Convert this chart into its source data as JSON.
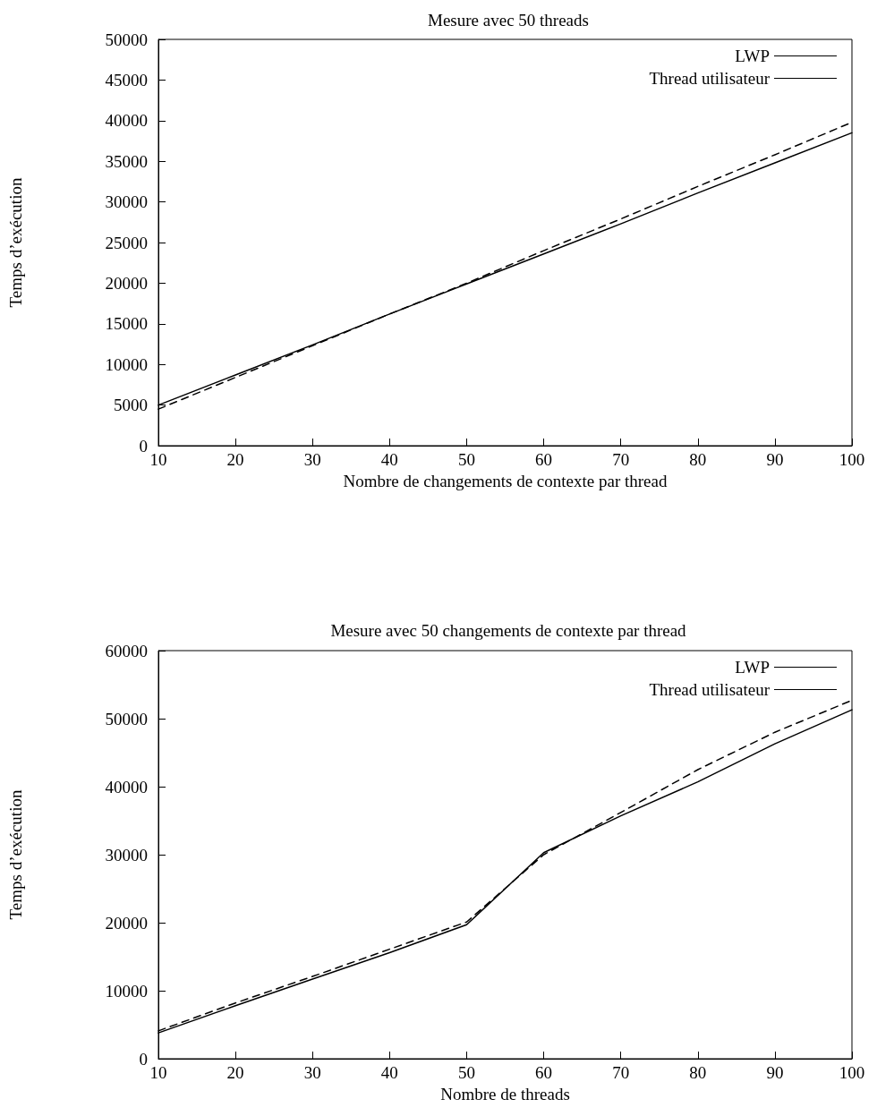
{
  "chart_data": [
    {
      "type": "line",
      "title": "Mesure avec 50 threads",
      "xlabel": "Nombre de changements de contexte par thread",
      "ylabel": "Temps d’exécution",
      "x": [
        10,
        20,
        30,
        40,
        50,
        60,
        70,
        80,
        90,
        100
      ],
      "series": [
        {
          "name": "LWP",
          "color": "#000000",
          "line_style": "solid",
          "values": [
            5000,
            8700,
            12400,
            16200,
            19900,
            23600,
            27300,
            31100,
            34800,
            38500
          ]
        },
        {
          "name": "Thread utilisateur",
          "color": "#000000",
          "line_style": "dashed",
          "values": [
            4500,
            8400,
            12300,
            16200,
            20000,
            24000,
            27900,
            31900,
            35800,
            39800
          ]
        }
      ],
      "xlim": [
        10,
        100
      ],
      "xticks": [
        10,
        20,
        30,
        40,
        50,
        60,
        70,
        80,
        90,
        100
      ],
      "ylim": [
        0,
        50000
      ],
      "yticks": [
        0,
        5000,
        10000,
        15000,
        20000,
        25000,
        30000,
        35000,
        40000,
        45000,
        50000
      ],
      "legend": "top right",
      "marker": "none",
      "grid": false
    },
    {
      "type": "line",
      "title": "Mesure avec 50 changements de contexte par thread",
      "xlabel": "Nombre de threads",
      "ylabel": "Temps d’exécution",
      "x": [
        10,
        20,
        30,
        40,
        50,
        60,
        70,
        80,
        90,
        100
      ],
      "series": [
        {
          "name": "LWP",
          "color": "#000000",
          "line_style": "solid",
          "values": [
            3800,
            7800,
            11700,
            15600,
            19700,
            30300,
            35700,
            40700,
            46300,
            51300
          ]
        },
        {
          "name": "Thread utilisateur",
          "color": "#000000",
          "line_style": "dashed",
          "values": [
            4100,
            8200,
            12100,
            16100,
            20100,
            30000,
            36200,
            42500,
            48000,
            52700
          ]
        }
      ],
      "xlim": [
        10,
        100
      ],
      "xticks": [
        10,
        20,
        30,
        40,
        50,
        60,
        70,
        80,
        90,
        100
      ],
      "ylim": [
        0,
        60000
      ],
      "yticks": [
        0,
        10000,
        20000,
        30000,
        40000,
        50000,
        60000
      ],
      "legend": "top right",
      "marker": "none",
      "grid": false
    }
  ]
}
